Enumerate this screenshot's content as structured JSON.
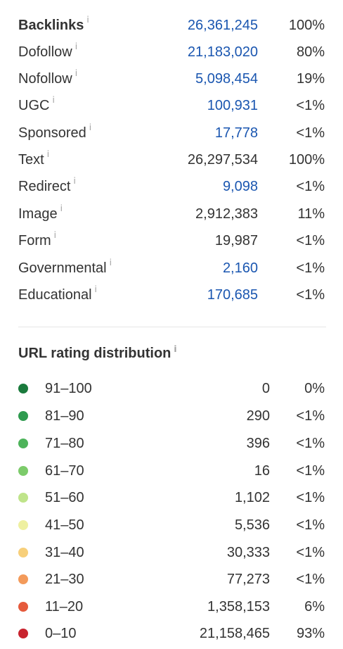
{
  "backlinks": {
    "info_glyph": "i",
    "rows": [
      {
        "label": "Backlinks",
        "value": "26,361,245",
        "pct": "100%",
        "bold": true,
        "link": true
      },
      {
        "label": "Dofollow",
        "value": "21,183,020",
        "pct": "80%",
        "bold": false,
        "link": true
      },
      {
        "label": "Nofollow",
        "value": "5,098,454",
        "pct": "19%",
        "bold": false,
        "link": true
      },
      {
        "label": "UGC",
        "value": "100,931",
        "pct": "<1%",
        "bold": false,
        "link": true
      },
      {
        "label": "Sponsored",
        "value": "17,778",
        "pct": "<1%",
        "bold": false,
        "link": true
      },
      {
        "label": "Text",
        "value": "26,297,534",
        "pct": "100%",
        "bold": false,
        "link": false
      },
      {
        "label": "Redirect",
        "value": "9,098",
        "pct": "<1%",
        "bold": false,
        "link": true
      },
      {
        "label": "Image",
        "value": "2,912,383",
        "pct": "11%",
        "bold": false,
        "link": false
      },
      {
        "label": "Form",
        "value": "19,987",
        "pct": "<1%",
        "bold": false,
        "link": false
      },
      {
        "label": "Governmental",
        "value": "2,160",
        "pct": "<1%",
        "bold": false,
        "link": true
      },
      {
        "label": "Educational",
        "value": "170,685",
        "pct": "<1%",
        "bold": false,
        "link": true
      }
    ]
  },
  "url_rating": {
    "title": "URL rating distribution",
    "rows": [
      {
        "range": "91–100",
        "count": "0",
        "pct": "0%",
        "color": "#1a7a3c"
      },
      {
        "range": "81–90",
        "count": "290",
        "pct": "<1%",
        "color": "#2e9a4e"
      },
      {
        "range": "71–80",
        "count": "396",
        "pct": "<1%",
        "color": "#4db35a"
      },
      {
        "range": "61–70",
        "count": "16",
        "pct": "<1%",
        "color": "#7ccb6a"
      },
      {
        "range": "51–60",
        "count": "1,102",
        "pct": "<1%",
        "color": "#bfe48a"
      },
      {
        "range": "41–50",
        "count": "5,536",
        "pct": "<1%",
        "color": "#eef0a0"
      },
      {
        "range": "31–40",
        "count": "30,333",
        "pct": "<1%",
        "color": "#f7cf7a"
      },
      {
        "range": "21–30",
        "count": "77,273",
        "pct": "<1%",
        "color": "#f39a5a"
      },
      {
        "range": "11–20",
        "count": "1,358,153",
        "pct": "6%",
        "color": "#e55a3c"
      },
      {
        "range": "0–10",
        "count": "21,158,465",
        "pct": "93%",
        "color": "#c8232e"
      }
    ]
  }
}
